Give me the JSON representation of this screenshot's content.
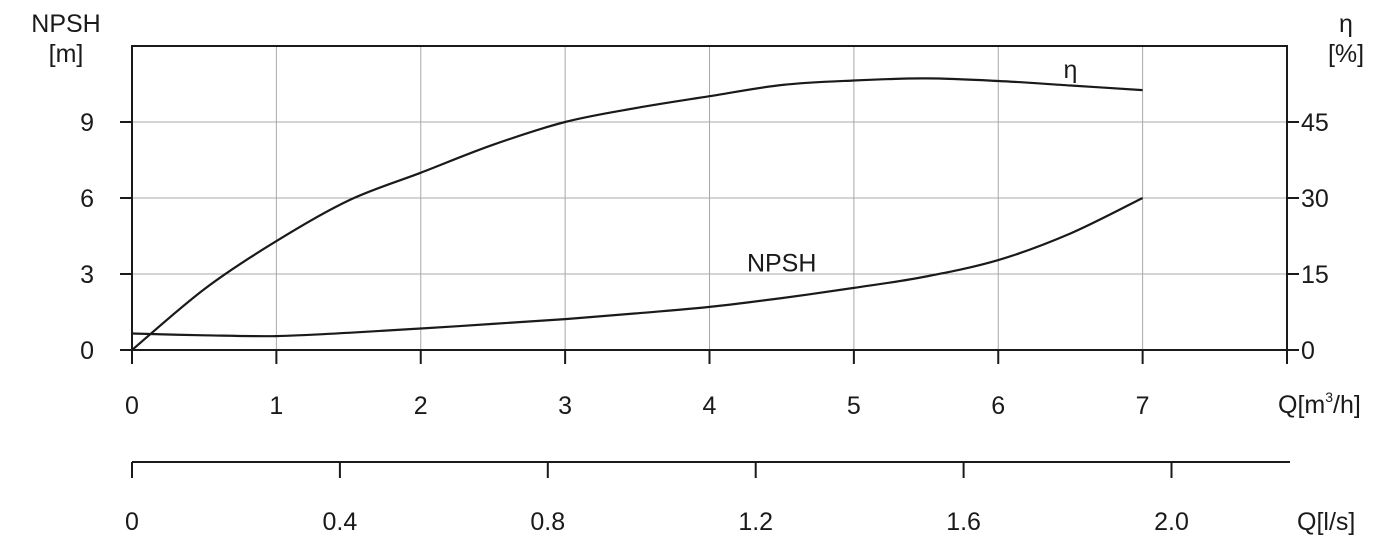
{
  "chart_data": {
    "type": "line",
    "left_axis": {
      "title_line1": "NPSH",
      "title_line2": "[m]",
      "ticks": [
        0,
        3,
        6,
        9
      ],
      "ylim": [
        0,
        12
      ]
    },
    "right_axis": {
      "title_line1": "η",
      "title_line2": "[%]",
      "ticks": [
        0,
        15,
        30,
        45
      ],
      "ylim": [
        0,
        60
      ]
    },
    "x_axis": {
      "title_main": "Q[m",
      "title_sup": "3",
      "title_end": "/h]",
      "ticks": [
        0,
        1,
        2,
        3,
        4,
        5,
        6,
        7
      ],
      "xlim": [
        0,
        8
      ]
    },
    "x_axis_secondary": {
      "title": "Q[l/s]",
      "ticks": [
        "0",
        "0.4",
        "0.8",
        "1.2",
        "1.6",
        "2.0"
      ],
      "tick_values": [
        0,
        0.4,
        0.8,
        1.2,
        1.6,
        2.0
      ]
    },
    "grid": true,
    "series": [
      {
        "name": "η",
        "axis": "right",
        "color": "#1a1a1a",
        "x": [
          0,
          0.5,
          1,
          1.5,
          2,
          2.5,
          3,
          3.5,
          4,
          4.5,
          5,
          5.5,
          6,
          6.5,
          7
        ],
        "y": [
          0,
          12,
          21.5,
          29.5,
          35,
          40.5,
          45,
          47.8,
          50.1,
          52.3,
          53.2,
          53.6,
          53.1,
          52.2,
          51.3
        ]
      },
      {
        "name": "NPSH",
        "axis": "left",
        "color": "#1a1a1a",
        "x": [
          0,
          0.5,
          1,
          1.5,
          2,
          2.5,
          3,
          3.5,
          4,
          4.5,
          5,
          5.5,
          6,
          6.5,
          7
        ],
        "y": [
          0.65,
          0.58,
          0.55,
          0.68,
          0.85,
          1.03,
          1.22,
          1.45,
          1.7,
          2.05,
          2.45,
          2.9,
          3.55,
          4.6,
          6.0
        ]
      }
    ]
  }
}
